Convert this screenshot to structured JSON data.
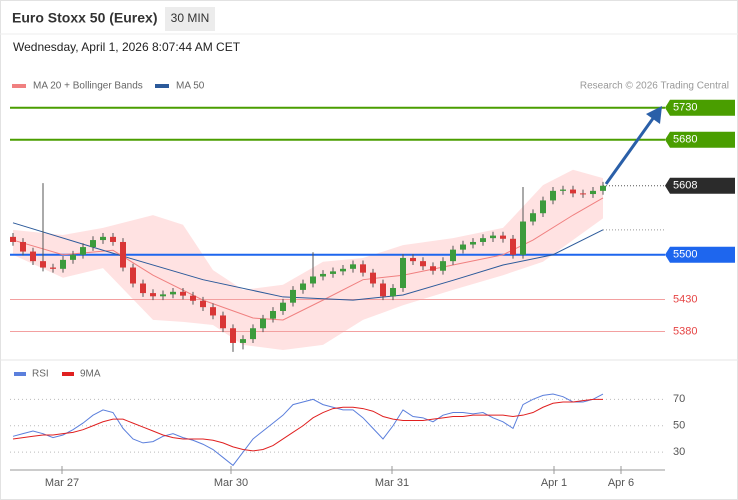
{
  "header": {
    "title": "Euro Stoxx 50 (Eurex)",
    "interval": "30 MIN",
    "date": "Wednesday, April 1, 2026 8:07:44 AM CET"
  },
  "chart_data": [
    {
      "type": "candlestick",
      "credit": "Research © 2026 Trading Central",
      "up_color": "#3c9b3c",
      "down_color": "#d93636",
      "open": [
        5528,
        5520,
        5505,
        5490,
        5480,
        5478,
        5492,
        5500,
        5512,
        5523,
        5528,
        5520,
        5480,
        5455,
        5440,
        5435,
        5438,
        5442,
        5436,
        5428,
        5418,
        5405,
        5385,
        5362,
        5368,
        5385,
        5400,
        5412,
        5425,
        5445,
        5455,
        5466,
        5470,
        5474,
        5478,
        5485,
        5472,
        5455,
        5435,
        5448,
        5495,
        5490,
        5482,
        5475,
        5490,
        5508,
        5516,
        5520,
        5526,
        5530,
        5525,
        5500,
        5552,
        5565,
        5585,
        5600,
        5602,
        5596,
        5595,
        5600
      ],
      "high": [
        5534,
        5526,
        5511,
        5612,
        5486,
        5498,
        5506,
        5518,
        5529,
        5534,
        5534,
        5526,
        5486,
        5461,
        5446,
        5444,
        5448,
        5448,
        5442,
        5434,
        5424,
        5411,
        5391,
        5374,
        5391,
        5406,
        5418,
        5431,
        5451,
        5461,
        5504,
        5476,
        5480,
        5484,
        5491,
        5491,
        5478,
        5461,
        5454,
        5501,
        5501,
        5496,
        5488,
        5496,
        5514,
        5522,
        5526,
        5532,
        5536,
        5536,
        5531,
        5606,
        5571,
        5591,
        5606,
        5608,
        5608,
        5602,
        5606,
        5614
      ],
      "low": [
        5514,
        5499,
        5484,
        5474,
        5472,
        5472,
        5486,
        5494,
        5506,
        5517,
        5514,
        5474,
        5449,
        5434,
        5429,
        5429,
        5432,
        5430,
        5422,
        5412,
        5399,
        5379,
        5348,
        5352,
        5362,
        5379,
        5394,
        5406,
        5419,
        5439,
        5449,
        5460,
        5464,
        5468,
        5472,
        5466,
        5449,
        5429,
        5429,
        5442,
        5484,
        5476,
        5469,
        5469,
        5484,
        5502,
        5510,
        5514,
        5520,
        5519,
        5494,
        5494,
        5546,
        5559,
        5579,
        5594,
        5590,
        5589,
        5589,
        5594
      ],
      "close": [
        5520,
        5505,
        5490,
        5480,
        5478,
        5492,
        5500,
        5512,
        5523,
        5528,
        5520,
        5480,
        5455,
        5440,
        5435,
        5438,
        5442,
        5436,
        5428,
        5418,
        5405,
        5385,
        5362,
        5368,
        5385,
        5400,
        5412,
        5425,
        5445,
        5455,
        5466,
        5470,
        5474,
        5478,
        5485,
        5472,
        5455,
        5435,
        5448,
        5495,
        5490,
        5482,
        5475,
        5490,
        5508,
        5516,
        5520,
        5526,
        5530,
        5525,
        5500,
        5552,
        5565,
        5585,
        5600,
        5602,
        5596,
        5595,
        5600,
        5608
      ],
      "series": [
        {
          "name": "MA 20 + Bollinger Bands",
          "color": "#f08080",
          "x": [
            0,
            5,
            10,
            14,
            19,
            24,
            27,
            31,
            35,
            39,
            44,
            49,
            52,
            56,
            59
          ],
          "values": [
            5523,
            5500,
            5507,
            5468,
            5429,
            5401,
            5398,
            5429,
            5461,
            5468,
            5484,
            5500,
            5523,
            5562,
            5589
          ]
        },
        {
          "name": "MA 50",
          "color": "#2c5a9a",
          "x": [
            0,
            9,
            19,
            27,
            34,
            39,
            44,
            49,
            54,
            59
          ],
          "values": [
            5550,
            5507,
            5461,
            5434,
            5429,
            5437,
            5460,
            5484,
            5500,
            5539
          ]
        }
      ],
      "bands": {
        "color": "#ffd6d6",
        "x": [
          0,
          5,
          9,
          14,
          17,
          20,
          23,
          27,
          31,
          35,
          39,
          44,
          49,
          53,
          56,
          59
        ],
        "upper": [
          5539,
          5531,
          5542,
          5562,
          5547,
          5476,
          5445,
          5453,
          5489,
          5495,
          5515,
          5526,
          5542,
          5609,
          5633,
          5620
        ],
        "lower": [
          5500,
          5464,
          5479,
          5398,
          5395,
          5390,
          5359,
          5351,
          5359,
          5398,
          5421,
          5445,
          5468,
          5489,
          5523,
          5557
        ]
      },
      "levels": [
        {
          "value": 5730,
          "color": "#4a9e00",
          "style": "box"
        },
        {
          "value": 5680,
          "color": "#4a9e00",
          "style": "box"
        },
        {
          "value": 5608,
          "color": "#2b2b2b",
          "style": "dotted"
        },
        {
          "value": 5500,
          "color": "#1e66ee",
          "style": "box"
        },
        {
          "value": 5430,
          "color": "#e64545",
          "style": "text"
        },
        {
          "value": 5380,
          "color": "#e64545",
          "style": "text"
        }
      ],
      "xlim": [
        0,
        59
      ],
      "ylim": [
        5340,
        5750
      ]
    },
    {
      "type": "line",
      "series": [
        {
          "name": "RSI",
          "color": "#5b7fdc",
          "values": [
            42,
            44,
            46,
            44,
            41,
            43,
            47,
            52,
            58,
            62,
            60,
            48,
            40,
            37,
            38,
            42,
            44,
            41,
            39,
            36,
            32,
            26,
            20,
            30,
            40,
            46,
            52,
            58,
            66,
            68,
            70,
            66,
            64,
            62,
            62,
            56,
            48,
            40,
            50,
            62,
            57,
            56,
            53,
            58,
            60,
            60,
            59,
            60,
            56,
            53,
            48,
            66,
            70,
            73,
            74,
            72,
            68,
            68,
            70,
            74
          ]
        },
        {
          "name": "9MA",
          "color": "#e02020",
          "values": [
            40,
            41,
            42,
            43,
            43,
            44,
            45,
            47,
            50,
            53,
            55,
            55,
            52,
            49,
            46,
            43,
            41,
            40,
            40,
            40,
            39,
            37,
            34,
            32,
            31,
            32,
            35,
            40,
            45,
            50,
            56,
            60,
            63,
            64,
            64,
            63,
            61,
            57,
            55,
            54,
            54,
            54,
            55,
            56,
            57,
            57,
            58,
            58,
            58,
            58,
            57,
            58,
            60,
            64,
            67,
            68,
            68,
            69,
            70,
            70
          ]
        }
      ],
      "xlim": [
        0,
        59
      ],
      "ylim": [
        18,
        96
      ],
      "yticks": [
        70,
        50,
        30
      ],
      "xticks": [
        {
          "value": 4.9,
          "label": "Mar 27"
        },
        {
          "value": 21.8,
          "label": "Mar 30"
        },
        {
          "value": 37.9,
          "label": "Mar 31"
        },
        {
          "value": 54.1,
          "label": "Apr 1"
        },
        {
          "value": 60.8,
          "label": "Apr 6"
        }
      ]
    }
  ]
}
